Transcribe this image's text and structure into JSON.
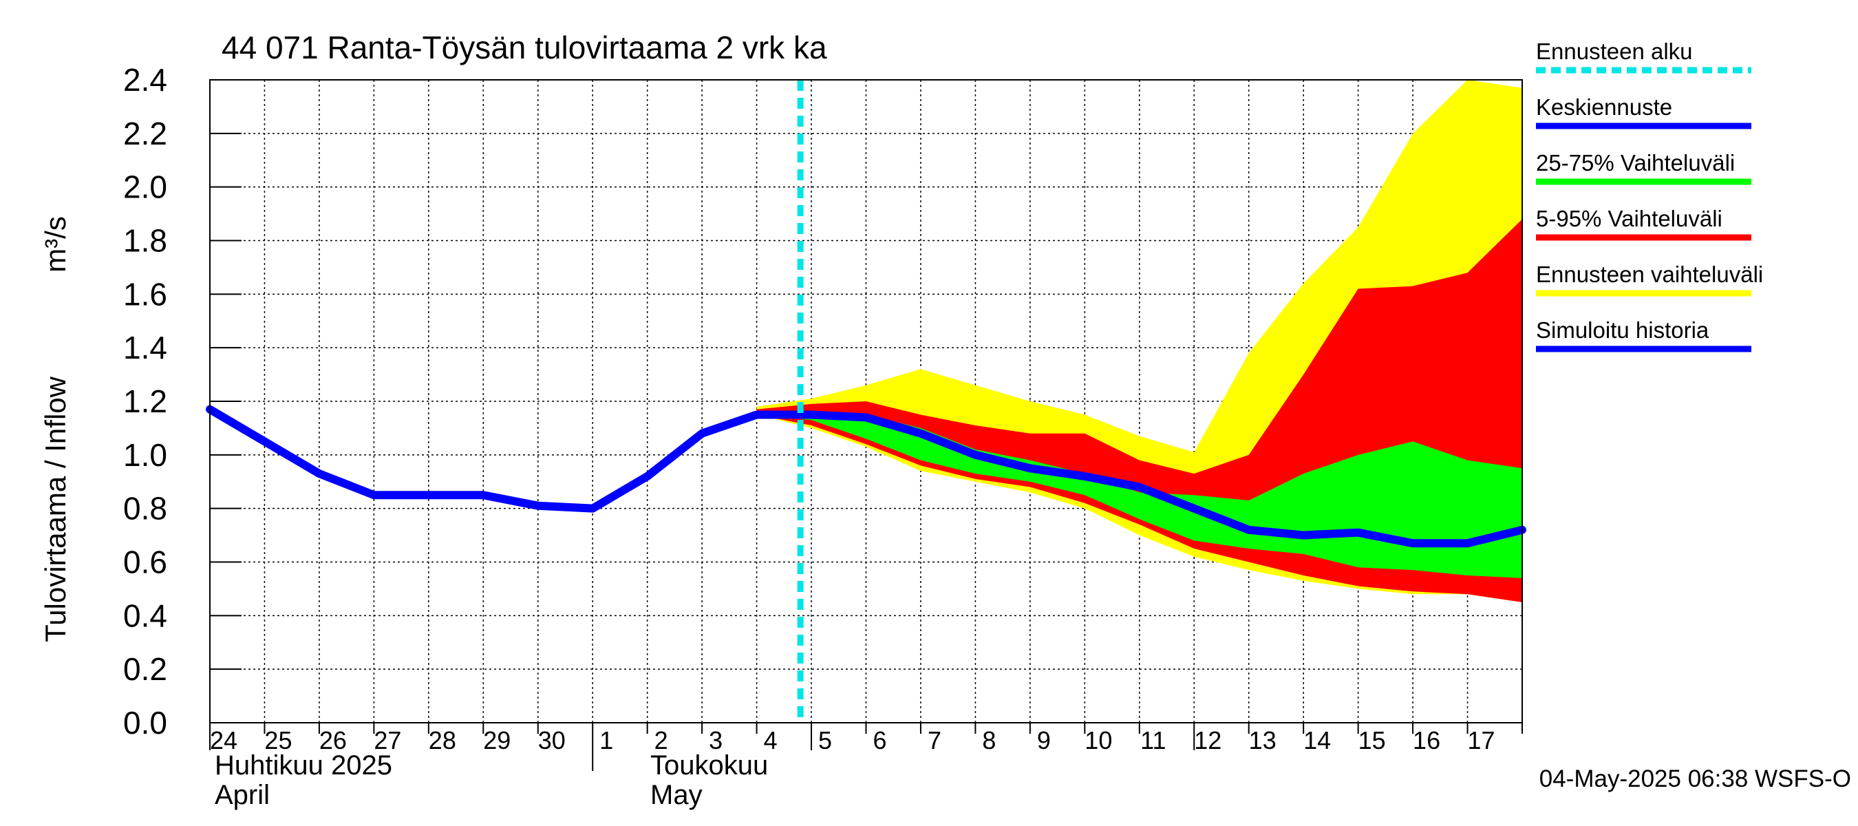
{
  "chart_data": {
    "type": "area",
    "title": "44 071 Ranta-Töysän tulovirtaama 2 vrk ka",
    "ylabel": "Tulovirtaama / Inflow",
    "yunit": "m³/s",
    "ylim": [
      0,
      2.4
    ],
    "yticks": [
      "0.0",
      "0.2",
      "0.4",
      "0.6",
      "0.8",
      "1.0",
      "1.2",
      "1.4",
      "1.6",
      "1.8",
      "2.0",
      "2.2",
      "2.4"
    ],
    "grid": true,
    "legend_position": "right",
    "day_labels": [
      "24",
      "25",
      "26",
      "27",
      "28",
      "29",
      "30",
      "1",
      "2",
      "3",
      "4",
      "5",
      "6",
      "7",
      "8",
      "9",
      "10",
      "11",
      "12",
      "13",
      "14",
      "15",
      "16",
      "17"
    ],
    "x_month_labels": [
      {
        "fi": "Huhtikuu  2025",
        "en": "April"
      },
      {
        "fi": "Toukokuu",
        "en": "May"
      }
    ],
    "forecast_start_day": 10.8,
    "history": {
      "name": "Simuloitu historia",
      "x": [
        0,
        1,
        2,
        3,
        4,
        5,
        6,
        7,
        8,
        9,
        10,
        10.8
      ],
      "values": [
        1.17,
        1.05,
        0.93,
        0.85,
        0.85,
        0.85,
        0.81,
        0.8,
        0.92,
        1.08,
        1.15,
        1.15
      ]
    },
    "median": {
      "name": "Keskiennuste",
      "x": [
        10.8,
        11,
        12,
        13,
        14,
        15,
        16,
        17,
        18,
        19,
        20,
        21,
        22,
        23,
        24
      ],
      "values": [
        1.15,
        1.15,
        1.14,
        1.08,
        1.0,
        0.95,
        0.92,
        0.88,
        0.8,
        0.72,
        0.7,
        0.71,
        0.67,
        0.67,
        0.72
      ]
    },
    "series_x": [
      10,
      11,
      12,
      13,
      14,
      15,
      16,
      17,
      18,
      19,
      20,
      21,
      22,
      23,
      24
    ],
    "bands": [
      {
        "name": "Ennusteen vaihteluväli",
        "color": "#ffff00",
        "upper": [
          1.18,
          1.21,
          1.26,
          1.32,
          1.26,
          1.2,
          1.15,
          1.07,
          1.01,
          1.38,
          1.64,
          1.85,
          2.2,
          2.4,
          2.37
        ],
        "lower": [
          1.15,
          1.1,
          1.03,
          0.94,
          0.9,
          0.86,
          0.8,
          0.7,
          0.62,
          0.57,
          0.53,
          0.5,
          0.48,
          0.48,
          0.45
        ]
      },
      {
        "name": "5-95% Vaihteluväli",
        "color": "#ff0000",
        "upper": [
          1.17,
          1.19,
          1.2,
          1.15,
          1.11,
          1.08,
          1.08,
          0.98,
          0.93,
          1.0,
          1.3,
          1.62,
          1.63,
          1.68,
          1.88
        ],
        "lower": [
          1.15,
          1.11,
          1.04,
          0.96,
          0.91,
          0.88,
          0.82,
          0.74,
          0.65,
          0.6,
          0.55,
          0.51,
          0.49,
          0.48,
          0.45
        ]
      },
      {
        "name": "25-75% Vaihteluväli",
        "color": "#00ff00",
        "upper": [
          1.16,
          1.16,
          1.15,
          1.1,
          1.02,
          0.98,
          0.93,
          0.86,
          0.85,
          0.83,
          0.93,
          1.0,
          1.05,
          0.98,
          0.95
        ],
        "lower": [
          1.15,
          1.13,
          1.06,
          0.98,
          0.93,
          0.9,
          0.85,
          0.76,
          0.68,
          0.65,
          0.63,
          0.58,
          0.57,
          0.55,
          0.54
        ]
      }
    ],
    "legend": [
      {
        "label": "Ennusteen alku",
        "color": "#00e5e5",
        "dashed": true
      },
      {
        "label": "Keskiennuste",
        "color": "#0000ff",
        "dashed": false
      },
      {
        "label": "25-75% Vaihteluväli",
        "color": "#00ff00",
        "dashed": false
      },
      {
        "label": "5-95% Vaihteluväli",
        "color": "#ff0000",
        "dashed": false
      },
      {
        "label": "Ennusteen vaihteluväli",
        "color": "#ffff00",
        "dashed": false
      },
      {
        "label": "Simuloitu historia",
        "color": "#0000ff",
        "dashed": false
      }
    ],
    "footer": "04-May-2025 06:38 WSFS-O"
  }
}
